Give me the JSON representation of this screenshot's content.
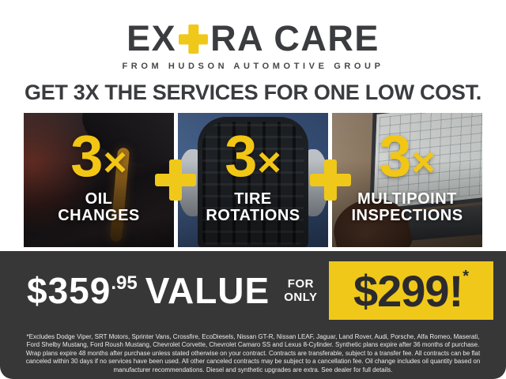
{
  "brand": {
    "name_prefix": "EX",
    "name_suffix": "RA CARE",
    "tagline": "FROM HUDSON AUTOMOTIVE GROUP"
  },
  "headline": "GET 3X THE SERVICES FOR ONE LOW COST.",
  "panels": [
    {
      "multiplier": "3",
      "times_symbol": "×",
      "label_lines": [
        "OIL",
        "CHANGES"
      ],
      "photo": "oil-pour-photo"
    },
    {
      "multiplier": "3",
      "times_symbol": "×",
      "label_lines": [
        "TIRE",
        "ROTATIONS"
      ],
      "photo": "tire-hold-photo"
    },
    {
      "multiplier": "3",
      "times_symbol": "×",
      "label_lines": [
        "MULTIPOINT",
        "INSPECTIONS"
      ],
      "photo": "laptop-inspection-photo"
    }
  ],
  "pricing": {
    "value_dollars": "$359",
    "value_cents": ".95",
    "value_word": "VALUE",
    "for_word": "FOR",
    "only_word": "ONLY",
    "price": "$299!",
    "asterisk": "*"
  },
  "fine_print": "*Excludes Dodge Viper, SRT Motors, Sprinter Vans, Crossfire, EcoDiesels, Nissan GT-R, Nissan LEAF, Jaguar, Land Rover, Audi, Porsche, Alfa Romeo, Maserati, Ford Shelby Mustang, Ford Roush Mustang, Chevrolet Corvette, Chevrolet Camaro SS and Lexus 8-Cylinder. Synthetic plans expire after 36 months of purchase. Wrap plans expire 48 months after purchase unless stated otherwise on your contract. Contracts are transferable, subject to a transfer fee. All contracts can be flat canceled within 30 days if no services have been used. All other canceled contracts may be subject to a cancellation fee. Oil change includes oil quantity based on manufacturer recommendations. Diesel and synthetic upgrades are extra. See dealer for full details.",
  "colors": {
    "accent_yellow": "#F0C81A",
    "band_charcoal": "#373737",
    "heading_charcoal": "#3B3C40",
    "label_white": "#FFFFFF"
  }
}
